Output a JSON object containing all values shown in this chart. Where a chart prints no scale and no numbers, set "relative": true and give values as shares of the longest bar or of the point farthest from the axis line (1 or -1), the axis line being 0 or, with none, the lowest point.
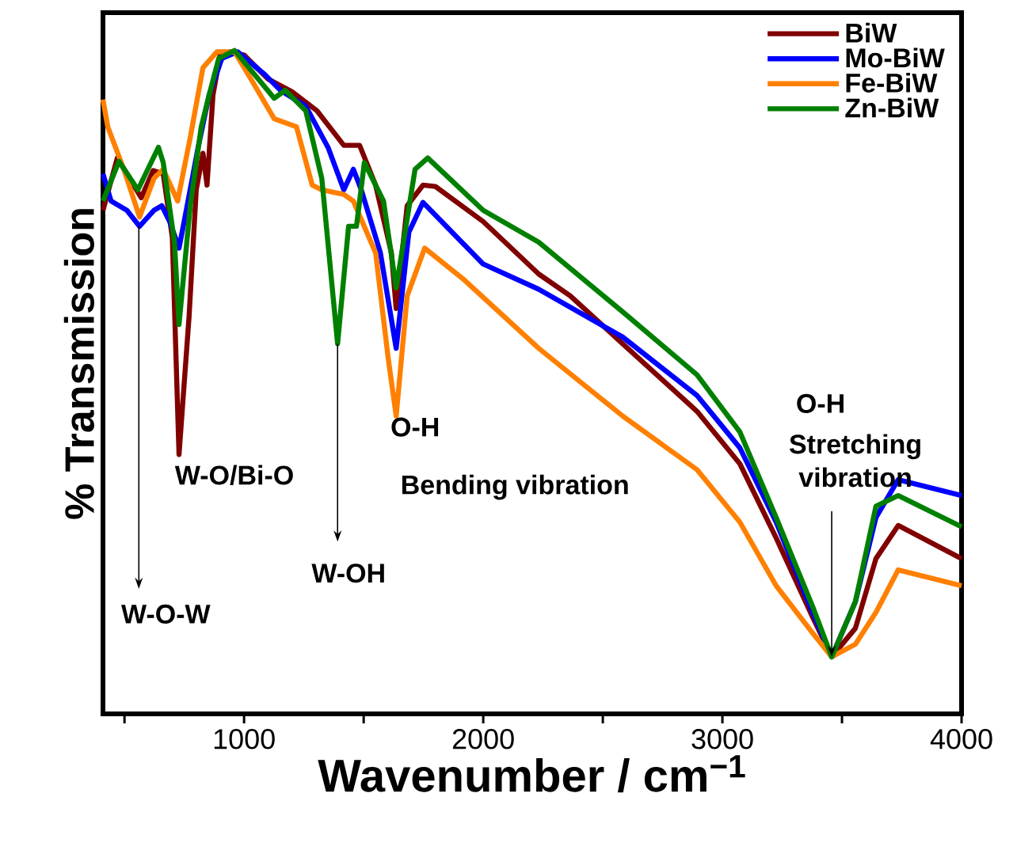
{
  "chart_data": {
    "type": "line",
    "relative": true,
    "xlabel": "Wavenumber / cm$^{−1}$",
    "ylabel": "% Transmission",
    "xlim": [
      410,
      4000
    ],
    "xticks": [
      {
        "value": 500,
        "label": null
      },
      1000,
      {
        "value": 1500,
        "label": null
      },
      2000,
      {
        "value": 2500,
        "label": null
      },
      3000,
      {
        "value": 3500,
        "label": null
      },
      4000
    ],
    "legend": "top right",
    "series": [
      {
        "name": "BiW",
        "color": "#800000",
        "x": [
          410,
          470,
          530,
          570,
          620,
          662,
          700,
          728,
          770,
          800,
          828,
          845,
          870,
          900,
          940,
          1000,
          1100,
          1200,
          1305,
          1417,
          1483,
          1550,
          1616,
          1636,
          1682,
          1748,
          1800,
          2000,
          2232,
          2364,
          2583,
          2894,
          3073,
          3225,
          3377,
          3457,
          3556,
          3642,
          3735,
          4000
        ],
        "values": [
          0.759,
          0.838,
          0.802,
          0.778,
          0.819,
          0.814,
          0.718,
          0.391,
          0.599,
          0.79,
          0.845,
          0.797,
          0.933,
          0.993,
          0.998,
          0.993,
          0.957,
          0.938,
          0.909,
          0.857,
          0.857,
          0.797,
          0.695,
          0.611,
          0.766,
          0.797,
          0.795,
          0.742,
          0.663,
          0.63,
          0.558,
          0.456,
          0.377,
          0.265,
          0.146,
          0.086,
          0.129,
          0.234,
          0.284,
          0.234
        ]
      },
      {
        "name": "Mo-BiW",
        "color": "#0000ff",
        "x": [
          410,
          444,
          510,
          563,
          623,
          656,
          689,
          728,
          762,
          808,
          854,
          907,
          973,
          1086,
          1152,
          1258,
          1351,
          1417,
          1457,
          1490,
          1570,
          1636,
          1689,
          1748,
          2000,
          2232,
          2583,
          2894,
          3073,
          3225,
          3377,
          3457,
          3556,
          3642,
          3735,
          4000
        ],
        "values": [
          0.814,
          0.773,
          0.759,
          0.735,
          0.759,
          0.766,
          0.742,
          0.702,
          0.766,
          0.854,
          0.933,
          0.988,
          0.998,
          0.964,
          0.94,
          0.916,
          0.854,
          0.79,
          0.821,
          0.79,
          0.695,
          0.551,
          0.726,
          0.771,
          0.678,
          0.64,
          0.568,
          0.48,
          0.401,
          0.289,
          0.153,
          0.086,
          0.169,
          0.296,
          0.353,
          0.329
        ]
      },
      {
        "name": "Fe-BiW",
        "color": "#ff8000",
        "x": [
          410,
          430,
          497,
          563,
          623,
          662,
          722,
          775,
          828,
          887,
          960,
          1040,
          1126,
          1219,
          1285,
          1325,
          1417,
          1457,
          1550,
          1603,
          1636,
          1682,
          1755,
          1921,
          2232,
          2583,
          2894,
          3073,
          3225,
          3377,
          3457,
          3556,
          3642,
          3735,
          4000
        ],
        "values": [
          0.926,
          0.885,
          0.821,
          0.749,
          0.807,
          0.821,
          0.773,
          0.869,
          0.974,
          0.998,
          0.998,
          0.95,
          0.897,
          0.885,
          0.797,
          0.79,
          0.783,
          0.773,
          0.695,
          0.535,
          0.449,
          0.63,
          0.702,
          0.654,
          0.551,
          0.449,
          0.368,
          0.289,
          0.193,
          0.122,
          0.086,
          0.105,
          0.153,
          0.217,
          0.193
        ]
      },
      {
        "name": "Zn-BiW",
        "color": "#008000",
        "x": [
          410,
          477,
          556,
          642,
          662,
          709,
          728,
          775,
          821,
          854,
          894,
          960,
          1020,
          1126,
          1172,
          1258,
          1325,
          1391,
          1437,
          1470,
          1503,
          1583,
          1636,
          1715,
          1768,
          2000,
          2232,
          2583,
          2894,
          3073,
          3225,
          3377,
          3457,
          3556,
          3642,
          3735,
          4000
        ],
        "values": [
          0.773,
          0.833,
          0.79,
          0.854,
          0.831,
          0.711,
          0.587,
          0.766,
          0.885,
          0.933,
          0.988,
          1.0,
          0.974,
          0.928,
          0.94,
          0.909,
          0.807,
          0.558,
          0.735,
          0.735,
          0.831,
          0.773,
          0.642,
          0.821,
          0.838,
          0.759,
          0.711,
          0.606,
          0.511,
          0.425,
          0.296,
          0.162,
          0.086,
          0.169,
          0.313,
          0.329,
          0.282
        ]
      }
    ],
    "annotations": [
      {
        "text": "W-O-W",
        "x": 560,
        "y": 0.735
      },
      {
        "text": "W-O/Bi-O",
        "x": 728,
        "y": 0.391
      },
      {
        "text": "W-OH",
        "x": 1391,
        "y": 0.558
      },
      {
        "text": "O-H",
        "x": 1636,
        "y": 0.449
      },
      "Bending vibration",
      "O-H",
      {
        "text": "Stretching vibration",
        "x": 3457,
        "y": 0.086
      }
    ]
  }
}
